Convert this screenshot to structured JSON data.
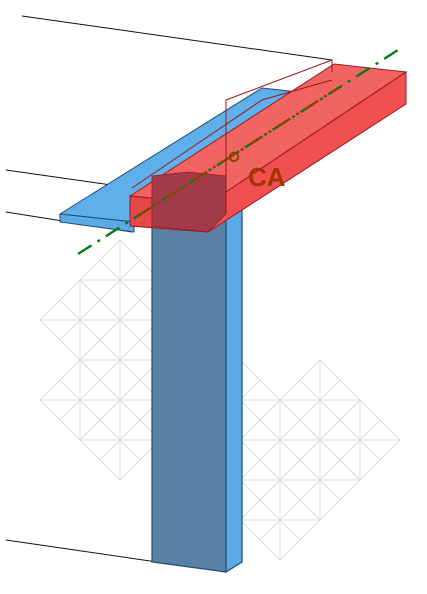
{
  "diagram": {
    "label": "CA",
    "colors": {
      "beam_fill": "#f05050",
      "beam_top": "#f26464",
      "beam_front": "#e44848",
      "beam_edge": "#9a1a1a",
      "column_front": "#5a7fa5",
      "column_side": "#5aaae8",
      "column_edge": "#1f4a78",
      "flange_top": "#5fb0ea",
      "overlap": "#a33a4a",
      "axis_line": "#0a7a10",
      "axis_dash": "#8a4400",
      "label_color": "#a33300",
      "pattern": "#dddddd",
      "leader": "#111111"
    }
  }
}
